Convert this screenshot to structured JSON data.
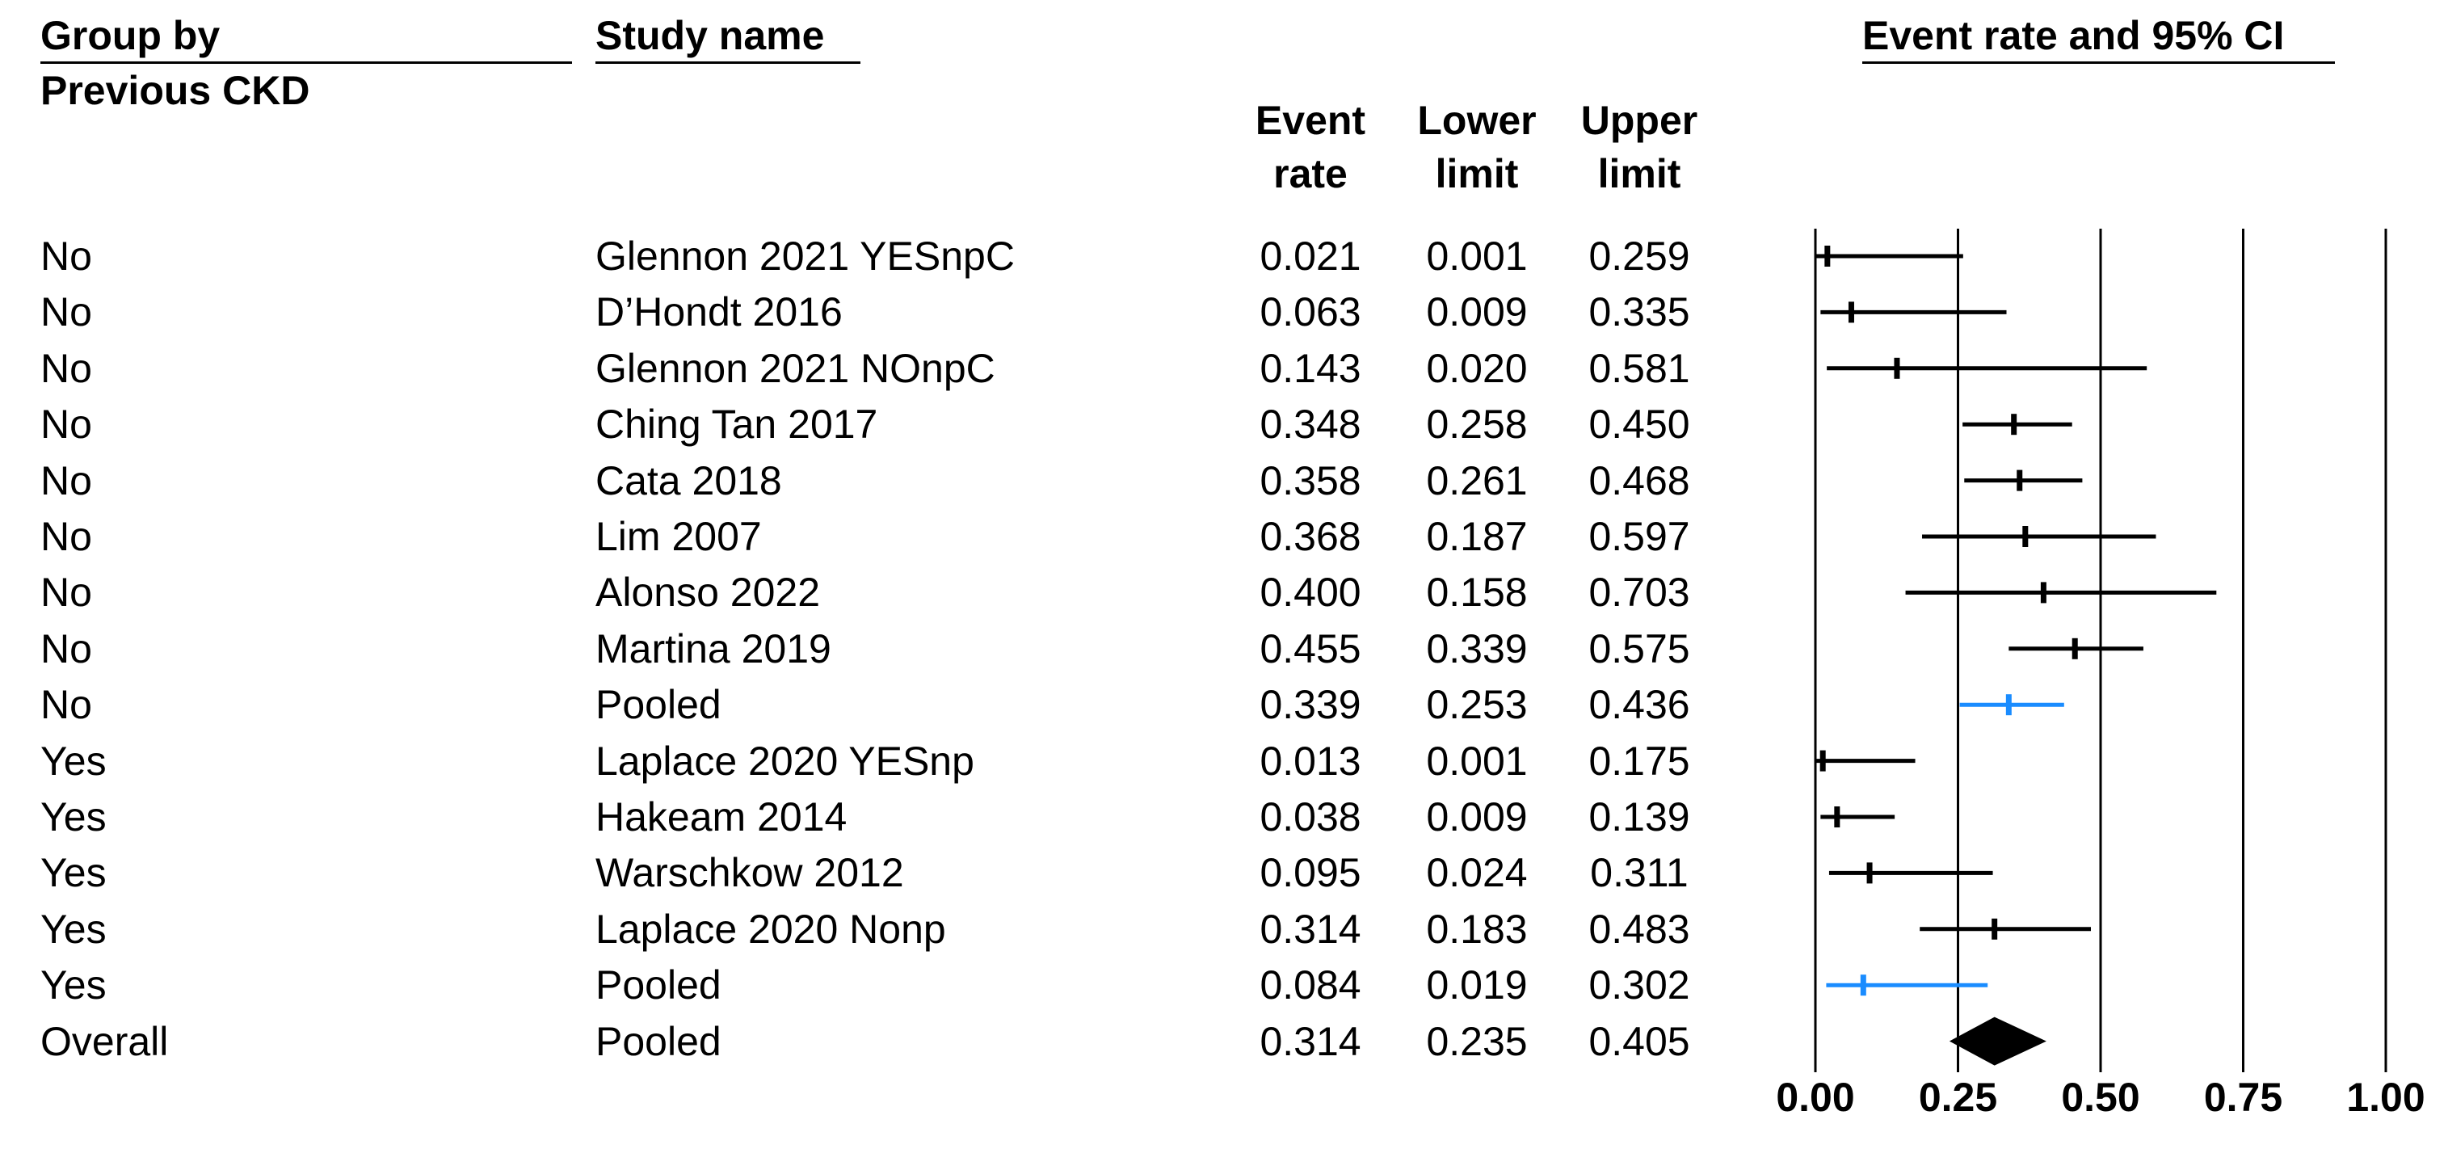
{
  "headers": {
    "group_by_line1": "Group by",
    "group_by_line2": "Previous CKD",
    "study_name": "Study name",
    "ci_title": "Event rate and 95% CI",
    "event_rate_line1": "Event",
    "event_rate_line2": "rate",
    "lower_line1": "Lower",
    "lower_line2": "limit",
    "upper_line1": "Upper",
    "upper_line2": "limit"
  },
  "colors": {
    "study": "#000000",
    "pooled_subgroup": "#1a8cff",
    "overall": "#000000"
  },
  "chart_data": {
    "type": "forest",
    "title": "Event rate and 95% CI",
    "xlim": [
      0,
      1
    ],
    "x_ticks": [
      "0.00",
      "0.25",
      "0.50",
      "0.75",
      "1.00"
    ],
    "x_tick_values": [
      0,
      0.25,
      0.5,
      0.75,
      1.0
    ],
    "grid": "vertical lines at ticks",
    "rows": [
      {
        "group": "No",
        "study": "Glennon 2021 YESnpC",
        "event_rate": "0.021",
        "lower": "0.001",
        "upper": "0.259",
        "kind": "study"
      },
      {
        "group": "No",
        "study": "D’Hondt 2016",
        "event_rate": "0.063",
        "lower": "0.009",
        "upper": "0.335",
        "kind": "study"
      },
      {
        "group": "No",
        "study": "Glennon 2021 NOnpC",
        "event_rate": "0.143",
        "lower": "0.020",
        "upper": "0.581",
        "kind": "study"
      },
      {
        "group": "No",
        "study": "Ching Tan 2017",
        "event_rate": "0.348",
        "lower": "0.258",
        "upper": "0.450",
        "kind": "study"
      },
      {
        "group": "No",
        "study": "Cata 2018",
        "event_rate": "0.358",
        "lower": "0.261",
        "upper": "0.468",
        "kind": "study"
      },
      {
        "group": "No",
        "study": "Lim 2007",
        "event_rate": "0.368",
        "lower": "0.187",
        "upper": "0.597",
        "kind": "study"
      },
      {
        "group": "No",
        "study": "Alonso 2022",
        "event_rate": "0.400",
        "lower": "0.158",
        "upper": "0.703",
        "kind": "study"
      },
      {
        "group": "No",
        "study": "Martina 2019",
        "event_rate": "0.455",
        "lower": "0.339",
        "upper": "0.575",
        "kind": "study"
      },
      {
        "group": "No",
        "study": "Pooled",
        "event_rate": "0.339",
        "lower": "0.253",
        "upper": "0.436",
        "kind": "pooled"
      },
      {
        "group": "Yes",
        "study": "Laplace 2020  YESnp",
        "event_rate": "0.013",
        "lower": "0.001",
        "upper": "0.175",
        "kind": "study"
      },
      {
        "group": "Yes",
        "study": "Hakeam 2014",
        "event_rate": "0.038",
        "lower": "0.009",
        "upper": "0.139",
        "kind": "study"
      },
      {
        "group": "Yes",
        "study": "Warschkow 2012",
        "event_rate": "0.095",
        "lower": "0.024",
        "upper": "0.311",
        "kind": "study"
      },
      {
        "group": "Yes",
        "study": "Laplace 2020 Nonp",
        "event_rate": "0.314",
        "lower": "0.183",
        "upper": "0.483",
        "kind": "study"
      },
      {
        "group": "Yes",
        "study": "Pooled",
        "event_rate": "0.084",
        "lower": "0.019",
        "upper": "0.302",
        "kind": "pooled"
      },
      {
        "group": "Overall",
        "study": "Pooled",
        "event_rate": "0.314",
        "lower": "0.235",
        "upper": "0.405",
        "kind": "overall"
      }
    ]
  }
}
